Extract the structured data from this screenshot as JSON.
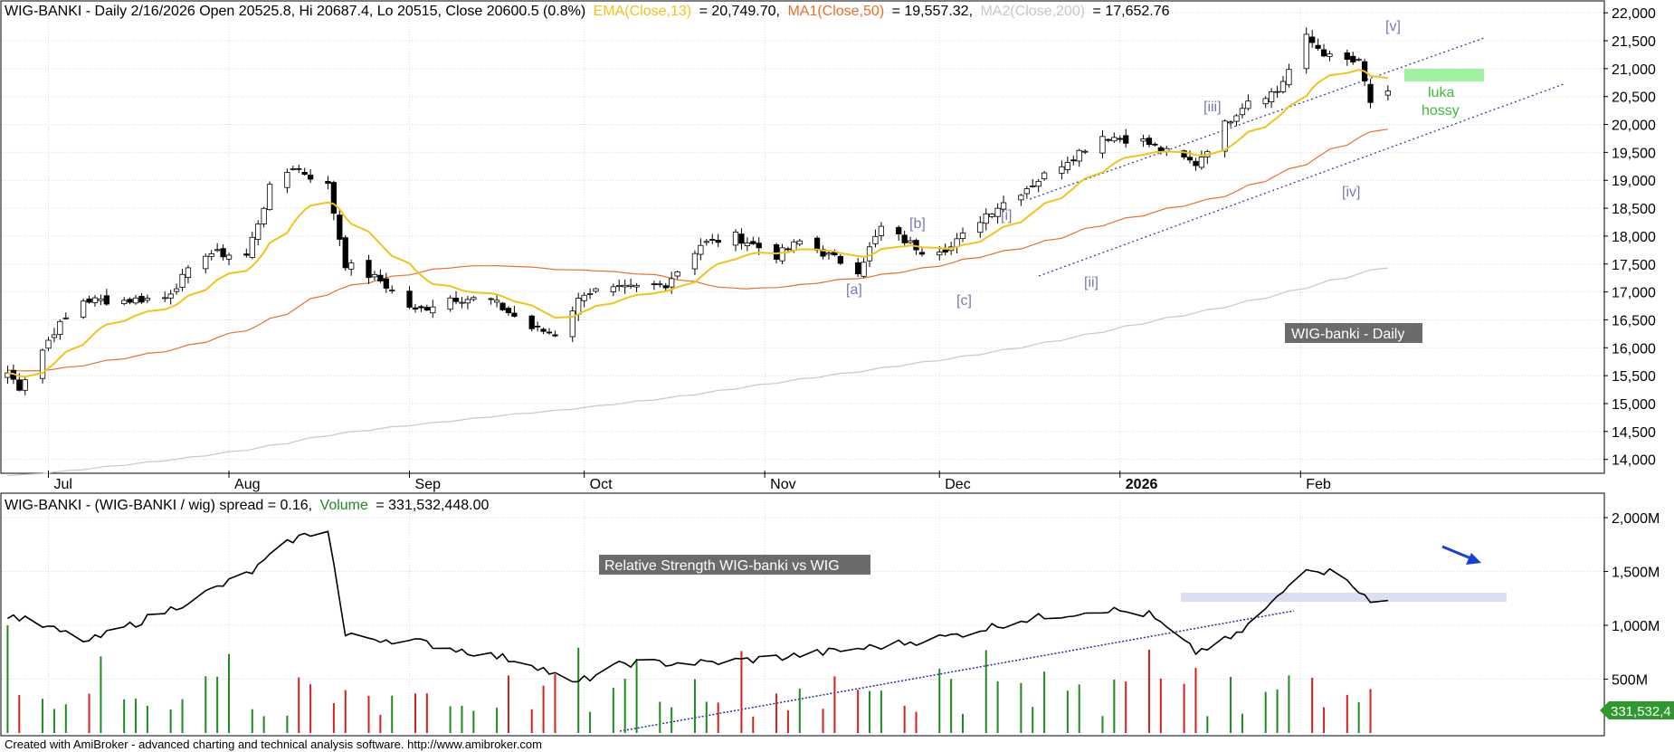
{
  "colors": {
    "ema": "#f0c419",
    "ma1": "#e8702a",
    "ma2": "#c8c8c8",
    "up_volume": "#1f8a1f",
    "down_volume": "#d42020",
    "wave_label": "#7878b4",
    "gap_zone": "#90ee90",
    "resistance_zone": "#dcdff2",
    "arrow": "#1a3fd8"
  },
  "header": {
    "title": "WIG-BANKI - Daily 2/16/2026 Open 20525.8, Hi 20687.4, Lo 20515, Close 20600.5 (0.8%)",
    "ema_label": "EMA(Close,13)",
    "ema_value": "= 20,749.70,",
    "ma1_label": "MA1(Close,50)",
    "ma1_value": "= 19,557.32,",
    "ma2_label": "MA2(Close,200)",
    "ma2_value": "= 17,652.76"
  },
  "lower_header": {
    "text": "WIG-BANKI - (WIG-BANKI / wig) spread = 0.16,",
    "volume_label": "Volume",
    "volume_value": "= 331,532,448.00"
  },
  "price_panel_label": "WIG-banki - Daily",
  "rs_panel_label": "Relative Strength WIG-banki vs WIG",
  "gap_label_line1": "luka",
  "gap_label_line2": "hossy",
  "volume_last_badge": "331,532,4",
  "footer": "Created with AmiBroker - advanced charting and technical analysis software. http://www.amibroker.com",
  "chart_data": [
    {
      "type": "candlestick",
      "title": "WIG-BANKI - Daily",
      "ylim": [
        13800,
        22100
      ],
      "y_ticks": [
        "22,000",
        "21,500",
        "21,000",
        "20,500",
        "20,000",
        "19,500",
        "19,000",
        "18,500",
        "18,000",
        "17,500",
        "17,000",
        "16,500",
        "16,000",
        "15,500",
        "15,000",
        "14,500",
        "14,000"
      ],
      "x_labels": [
        "Jul",
        "Aug",
        "Sep",
        "Oct",
        "Nov",
        "Dec",
        "2026",
        "Feb"
      ],
      "wave_labels": [
        "[v]",
        "[iii]",
        "[b]",
        "[i]",
        "[a]",
        "[c]",
        "[ii]",
        "[iv]"
      ],
      "last_bar": {
        "date": "2/16/2026",
        "open": 20525.8,
        "high": 20687.4,
        "low": 20515,
        "close": 20600.5,
        "change_pct": 0.8
      },
      "anchors": [
        {
          "date": "2025-06-24",
          "close": 15550
        },
        {
          "date": "2025-06-26",
          "close": 15300
        },
        {
          "date": "2025-07-02",
          "close": 16300
        },
        {
          "date": "2025-07-07",
          "close": 16850
        },
        {
          "date": "2025-07-14",
          "close": 16850
        },
        {
          "date": "2025-07-21",
          "close": 16900
        },
        {
          "date": "2025-07-28",
          "close": 17700
        },
        {
          "date": "2025-08-04",
          "close": 17650
        },
        {
          "date": "2025-08-08",
          "close": 18850
        },
        {
          "date": "2025-08-12",
          "close": 19250
        },
        {
          "date": "2025-08-18",
          "close": 18900
        },
        {
          "date": "2025-08-21",
          "close": 17500
        },
        {
          "date": "2025-08-27",
          "close": 17200
        },
        {
          "date": "2025-09-02",
          "close": 16650
        },
        {
          "date": "2025-09-08",
          "close": 16900
        },
        {
          "date": "2025-09-15",
          "close": 16850
        },
        {
          "date": "2025-09-22",
          "close": 16350
        },
        {
          "date": "2025-09-26",
          "close": 16250
        },
        {
          "date": "2025-10-01",
          "close": 17000
        },
        {
          "date": "2025-10-08",
          "close": 17050
        },
        {
          "date": "2025-10-15",
          "close": 17150
        },
        {
          "date": "2025-10-21",
          "close": 17850
        },
        {
          "date": "2025-10-27",
          "close": 18000
        },
        {
          "date": "2025-11-03",
          "close": 17650
        },
        {
          "date": "2025-11-07",
          "close": 17900
        },
        {
          "date": "2025-11-12",
          "close": 17650
        },
        {
          "date": "2025-11-17",
          "close": 17400
        },
        {
          "date": "2025-11-21",
          "close": 18150
        },
        {
          "date": "2025-11-28",
          "close": 17750
        },
        {
          "date": "2025-12-03",
          "close": 17800
        },
        {
          "date": "2025-12-09",
          "close": 18400
        },
        {
          "date": "2025-12-15",
          "close": 18800
        },
        {
          "date": "2025-12-22",
          "close": 19300
        },
        {
          "date": "2025-12-29",
          "close": 19800
        },
        {
          "date": "2026-01-05",
          "close": 19700
        },
        {
          "date": "2026-01-09",
          "close": 19500
        },
        {
          "date": "2026-01-14",
          "close": 19300
        },
        {
          "date": "2026-01-19",
          "close": 20000
        },
        {
          "date": "2026-01-23",
          "close": 20450
        },
        {
          "date": "2026-01-28",
          "close": 20600
        },
        {
          "date": "2026-02-02",
          "close": 21550
        },
        {
          "date": "2026-02-06",
          "close": 21200
        },
        {
          "date": "2026-02-11",
          "close": 21100
        },
        {
          "date": "2026-02-13",
          "close": 20400
        },
        {
          "date": "2026-02-16",
          "close": 20600.5
        }
      ],
      "series": [
        {
          "name": "EMA(Close,13)",
          "last": 20749.7
        },
        {
          "name": "MA1(Close,50)",
          "last": 19557.32
        },
        {
          "name": "MA2(Close,200)",
          "last": 17652.76
        }
      ]
    },
    {
      "type": "line+bar",
      "title": "Relative Strength WIG-banki vs WIG",
      "y_ticks": [
        "2,000M",
        "1,500M",
        "1,000M",
        "500M"
      ],
      "ylim": [
        0,
        2000
      ],
      "volume_last": 331532448,
      "spread_last": 0.16
    }
  ]
}
